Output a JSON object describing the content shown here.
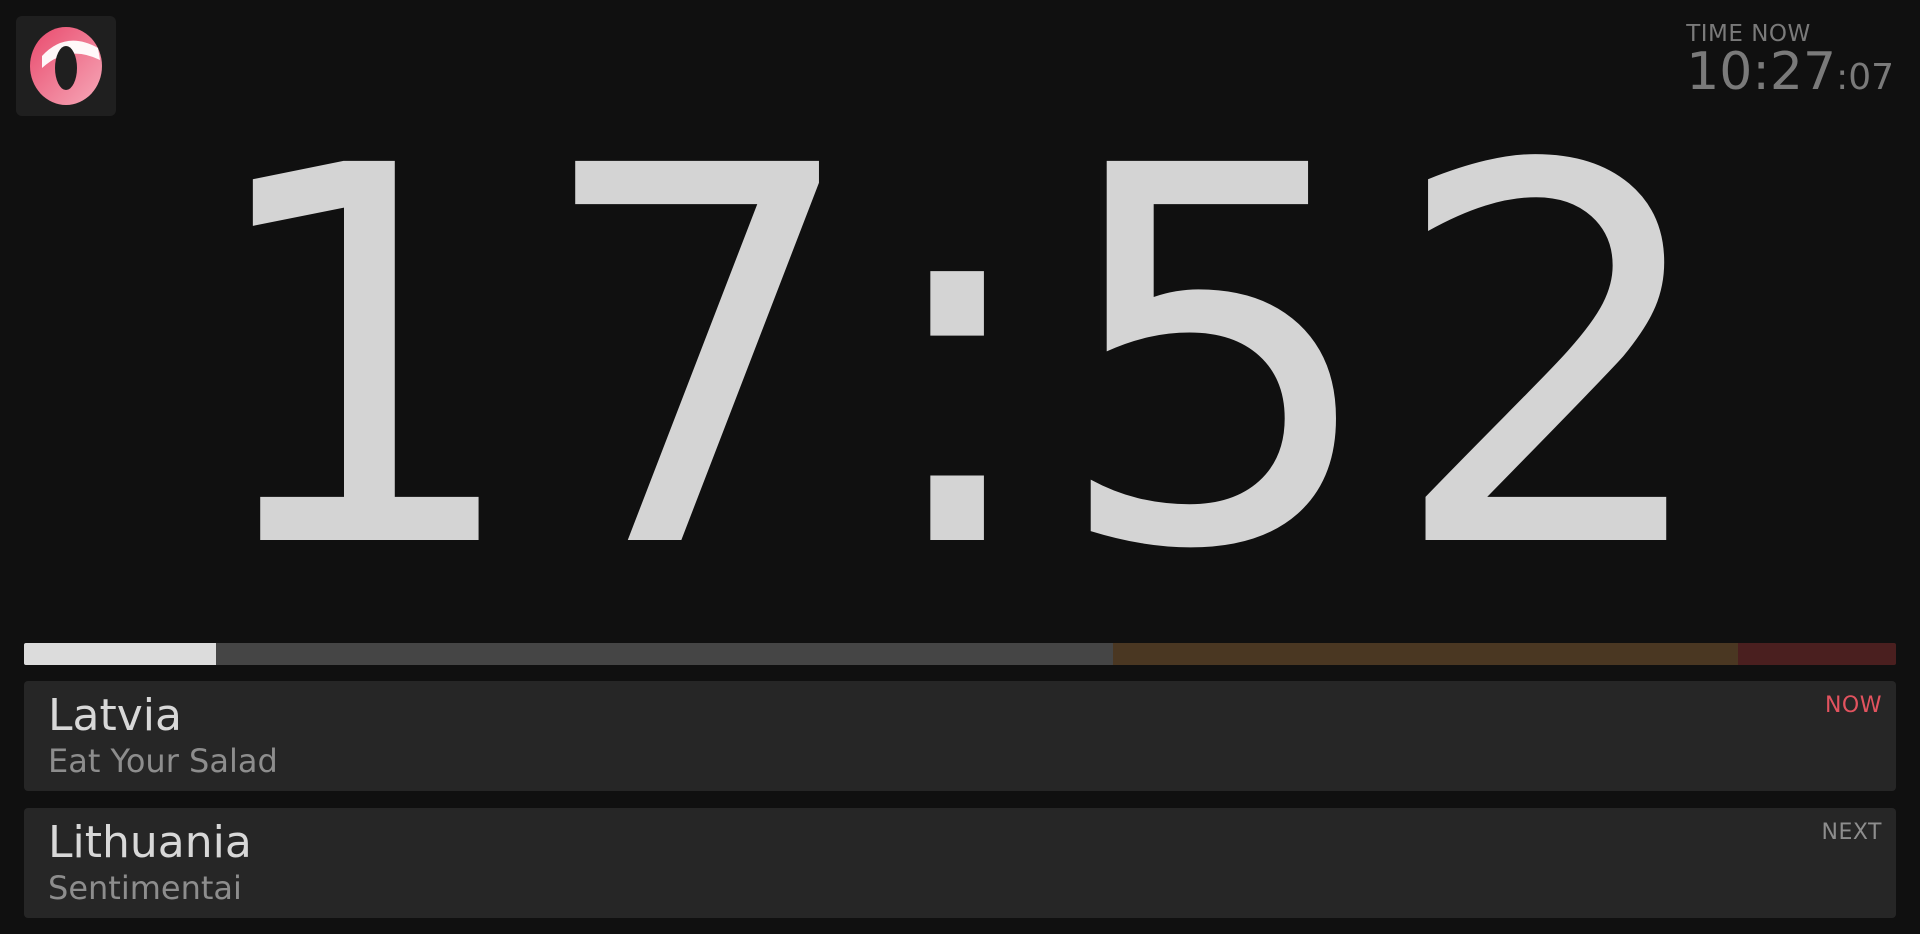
{
  "logo": {
    "icon": "ontime-logo-icon"
  },
  "clock": {
    "label": "TIME NOW",
    "hours_minutes": "10:27",
    "seconds": ":07"
  },
  "timer": {
    "display": "17:52"
  },
  "progress": {
    "elapsed_fraction": 0.102,
    "colors": {
      "done": "#dcdcdc",
      "normal": "#454545",
      "warning": "#4a3722",
      "danger": "#4a1f1f"
    }
  },
  "events": {
    "now": {
      "title": "Latvia",
      "subtitle": "Eat Your Salad",
      "tag": "NOW",
      "tag_color": "#e2535f"
    },
    "next": {
      "title": "Lithuania",
      "subtitle": "Sentimentai",
      "tag": "NEXT"
    }
  }
}
